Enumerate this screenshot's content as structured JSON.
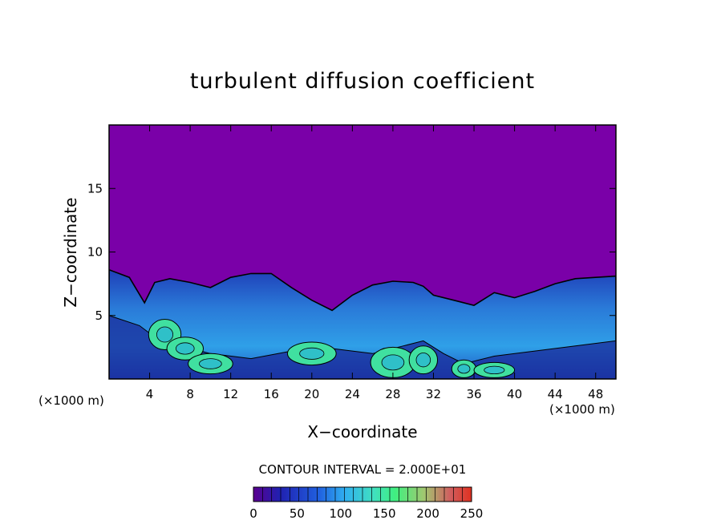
{
  "chart_data": {
    "type": "heatmap",
    "title": "turbulent diffusion coefficient",
    "xlabel": "X−coordinate",
    "ylabel": "Z−coordinate",
    "x_unit": "(×1000 m)",
    "z_unit": "(×1000 m)",
    "xlim": [
      0,
      50
    ],
    "ylim": [
      0,
      20
    ],
    "x_ticks": [
      4,
      8,
      12,
      16,
      20,
      24,
      28,
      32,
      36,
      40,
      44,
      48
    ],
    "y_ticks": [
      5,
      10,
      15
    ],
    "contour_interval": "CONTOUR INTERVAL = 2.000E+01",
    "colorbar": {
      "range": [
        0,
        250
      ],
      "ticks": [
        0,
        50,
        100,
        150,
        200,
        250
      ]
    },
    "colors": {
      "background_field": "#7a00a8",
      "low": "#1a2a9a",
      "mid": "#2f8fe0",
      "high": "#40e0a0"
    },
    "turbulent_layer_top": [
      [
        0,
        8.6
      ],
      [
        2,
        8.0
      ],
      [
        3.5,
        6.0
      ],
      [
        4.5,
        7.6
      ],
      [
        6,
        7.9
      ],
      [
        8,
        7.6
      ],
      [
        10,
        7.2
      ],
      [
        12,
        8.0
      ],
      [
        14,
        8.3
      ],
      [
        16,
        8.3
      ],
      [
        18,
        7.2
      ],
      [
        20,
        6.2
      ],
      [
        22,
        5.4
      ],
      [
        24,
        6.6
      ],
      [
        26,
        7.4
      ],
      [
        28,
        7.7
      ],
      [
        30,
        7.6
      ],
      [
        31,
        7.3
      ],
      [
        32,
        6.6
      ],
      [
        34,
        6.2
      ],
      [
        36,
        5.8
      ],
      [
        38,
        6.8
      ],
      [
        40,
        6.4
      ],
      [
        42,
        6.9
      ],
      [
        44,
        7.5
      ],
      [
        46,
        7.9
      ],
      [
        48,
        8.0
      ],
      [
        50,
        8.1
      ]
    ],
    "turbulent_core_top": [
      [
        0,
        5.0
      ],
      [
        3,
        4.2
      ],
      [
        5,
        3.0
      ],
      [
        7,
        2.6
      ],
      [
        10,
        2.0
      ],
      [
        14,
        1.6
      ],
      [
        18,
        2.2
      ],
      [
        22,
        2.4
      ],
      [
        26,
        2.0
      ],
      [
        29,
        2.6
      ],
      [
        31,
        3.0
      ],
      [
        33,
        2.0
      ],
      [
        35,
        1.2
      ],
      [
        38,
        1.8
      ],
      [
        42,
        2.2
      ],
      [
        46,
        2.6
      ],
      [
        50,
        3.0
      ]
    ],
    "high_cores": [
      [
        5.5,
        3.5,
        1.6,
        1.2
      ],
      [
        7.5,
        2.4,
        1.8,
        0.9
      ],
      [
        10,
        1.2,
        2.2,
        0.8
      ],
      [
        20,
        2.0,
        2.4,
        0.9
      ],
      [
        28,
        1.3,
        2.2,
        1.2
      ],
      [
        31,
        1.5,
        1.4,
        1.1
      ],
      [
        35,
        0.8,
        1.2,
        0.7
      ],
      [
        38,
        0.7,
        2.0,
        0.6
      ]
    ]
  }
}
